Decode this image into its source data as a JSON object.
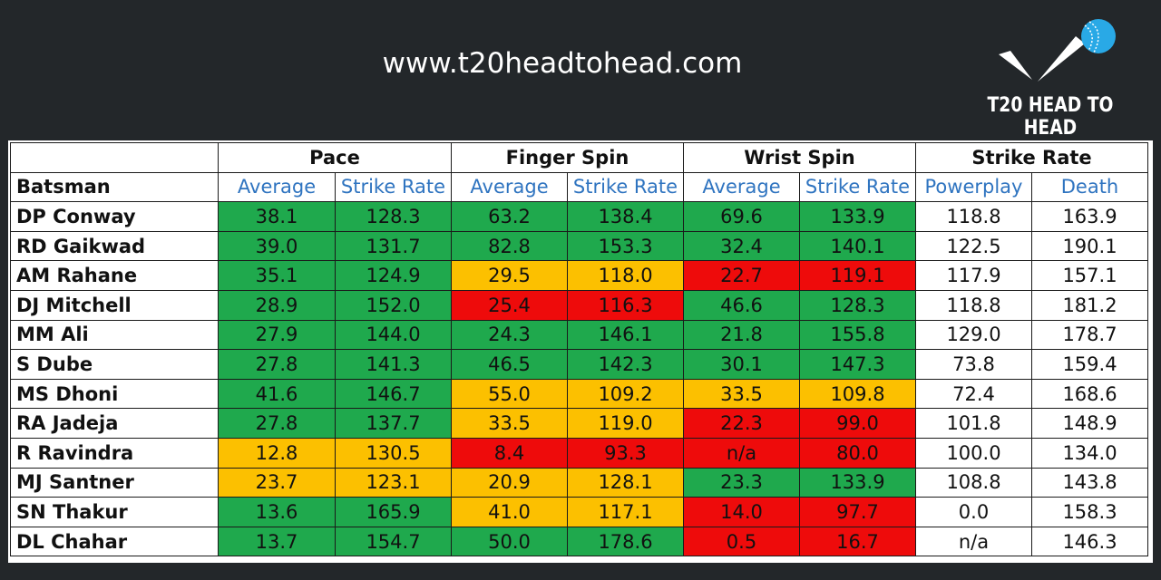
{
  "site_url": "www.t20headtohead.com",
  "logo_text": "T20 HEAD TO HEAD",
  "colors": {
    "green": "#1fa94d",
    "yellow": "#fcc000",
    "red": "#ee0b0b",
    "header_blue": "#2f74c0"
  },
  "table": {
    "groups": [
      "Pace",
      "Finger Spin",
      "Wrist Spin",
      "Strike Rate"
    ],
    "batsman_header": "Batsman",
    "subheaders": [
      "Average",
      "Strike Rate",
      "Average",
      "Strike Rate",
      "Average",
      "Strike Rate",
      "Powerplay",
      "Death"
    ],
    "rows": [
      {
        "name": "DP Conway",
        "values": [
          "38.1",
          "128.3",
          "63.2",
          "138.4",
          "69.6",
          "133.9",
          "118.8",
          "163.9"
        ],
        "colors": [
          "g",
          "g",
          "g",
          "g",
          "g",
          "g",
          "w",
          "w"
        ]
      },
      {
        "name": "RD Gaikwad",
        "values": [
          "39.0",
          "131.7",
          "82.8",
          "153.3",
          "32.4",
          "140.1",
          "122.5",
          "190.1"
        ],
        "colors": [
          "g",
          "g",
          "g",
          "g",
          "g",
          "g",
          "w",
          "w"
        ]
      },
      {
        "name": "AM Rahane",
        "values": [
          "35.1",
          "124.9",
          "29.5",
          "118.0",
          "22.7",
          "119.1",
          "117.9",
          "157.1"
        ],
        "colors": [
          "g",
          "g",
          "y",
          "y",
          "r",
          "r",
          "w",
          "w"
        ]
      },
      {
        "name": "DJ Mitchell",
        "values": [
          "28.9",
          "152.0",
          "25.4",
          "116.3",
          "46.6",
          "128.3",
          "118.8",
          "181.2"
        ],
        "colors": [
          "g",
          "g",
          "r",
          "r",
          "g",
          "g",
          "w",
          "w"
        ]
      },
      {
        "name": "MM Ali",
        "values": [
          "27.9",
          "144.0",
          "24.3",
          "146.1",
          "21.8",
          "155.8",
          "129.0",
          "178.7"
        ],
        "colors": [
          "g",
          "g",
          "g",
          "g",
          "g",
          "g",
          "w",
          "w"
        ]
      },
      {
        "name": "S Dube",
        "values": [
          "27.8",
          "141.3",
          "46.5",
          "142.3",
          "30.1",
          "147.3",
          "73.8",
          "159.4"
        ],
        "colors": [
          "g",
          "g",
          "g",
          "g",
          "g",
          "g",
          "w",
          "w"
        ]
      },
      {
        "name": "MS Dhoni",
        "values": [
          "41.6",
          "146.7",
          "55.0",
          "109.2",
          "33.5",
          "109.8",
          "72.4",
          "168.6"
        ],
        "colors": [
          "g",
          "g",
          "y",
          "y",
          "y",
          "y",
          "w",
          "w"
        ]
      },
      {
        "name": "RA Jadeja",
        "values": [
          "27.8",
          "137.7",
          "33.5",
          "119.0",
          "22.3",
          "99.0",
          "101.8",
          "148.9"
        ],
        "colors": [
          "g",
          "g",
          "y",
          "y",
          "r",
          "r",
          "w",
          "w"
        ]
      },
      {
        "name": "R Ravindra",
        "values": [
          "12.8",
          "130.5",
          "8.4",
          "93.3",
          "n/a",
          "80.0",
          "100.0",
          "134.0"
        ],
        "colors": [
          "y",
          "y",
          "r",
          "r",
          "r",
          "r",
          "w",
          "w"
        ]
      },
      {
        "name": "MJ Santner",
        "values": [
          "23.7",
          "123.1",
          "20.9",
          "128.1",
          "23.3",
          "133.9",
          "108.8",
          "143.8"
        ],
        "colors": [
          "y",
          "y",
          "y",
          "y",
          "g",
          "g",
          "w",
          "w"
        ]
      },
      {
        "name": "SN Thakur",
        "values": [
          "13.6",
          "165.9",
          "41.0",
          "117.1",
          "14.0",
          "97.7",
          "0.0",
          "158.3"
        ],
        "colors": [
          "g",
          "g",
          "y",
          "y",
          "r",
          "r",
          "w",
          "w"
        ]
      },
      {
        "name": "DL Chahar",
        "values": [
          "13.7",
          "154.7",
          "50.0",
          "178.6",
          "0.5",
          "16.7",
          "n/a",
          "146.3"
        ],
        "colors": [
          "g",
          "g",
          "g",
          "g",
          "r",
          "r",
          "w",
          "w"
        ]
      }
    ]
  }
}
